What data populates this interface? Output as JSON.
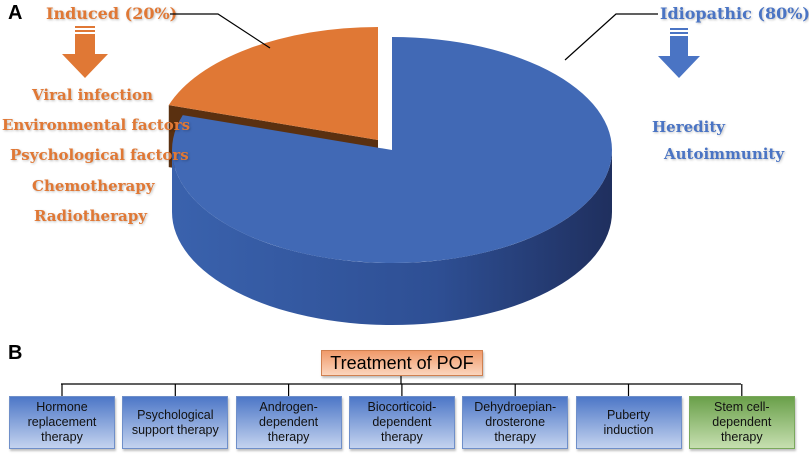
{
  "panels": {
    "a": "A",
    "b": "B"
  },
  "chart_data": {
    "type": "pie",
    "slices": [
      {
        "name": "Idiopathic (80%)",
        "value": 80,
        "color": "#4169b5",
        "causes": [
          "Heredity",
          "Autoimmunity"
        ]
      },
      {
        "name": "Induced (20%)",
        "value": 20,
        "color": "#e07835",
        "causes": [
          "Viral infection",
          "Environmental factors",
          "Psychological factors",
          "Chemotherapy",
          "Radiotherapy"
        ]
      }
    ],
    "style": "3d-exploded"
  },
  "treatment": {
    "title": "Treatment of POF",
    "items": [
      {
        "lines": [
          "Hormone",
          "replacement",
          "therapy"
        ],
        "color": "#4d77c7"
      },
      {
        "lines": [
          "Psychological",
          "support therapy"
        ],
        "color": "#4d77c7"
      },
      {
        "lines": [
          "Androgen-",
          "dependent",
          "therapy"
        ],
        "color": "#4d77c7"
      },
      {
        "lines": [
          "Biocorticoid-",
          "dependent",
          "therapy"
        ],
        "color": "#4d77c7"
      },
      {
        "lines": [
          "Dehydroepian-",
          "drosterone",
          "therapy"
        ],
        "color": "#4d77c7"
      },
      {
        "lines": [
          "Puberty",
          "induction"
        ],
        "color": "#4d77c7"
      },
      {
        "lines": [
          "Stem cell-",
          "dependent",
          "therapy"
        ],
        "color": "#6aa04a"
      }
    ]
  }
}
